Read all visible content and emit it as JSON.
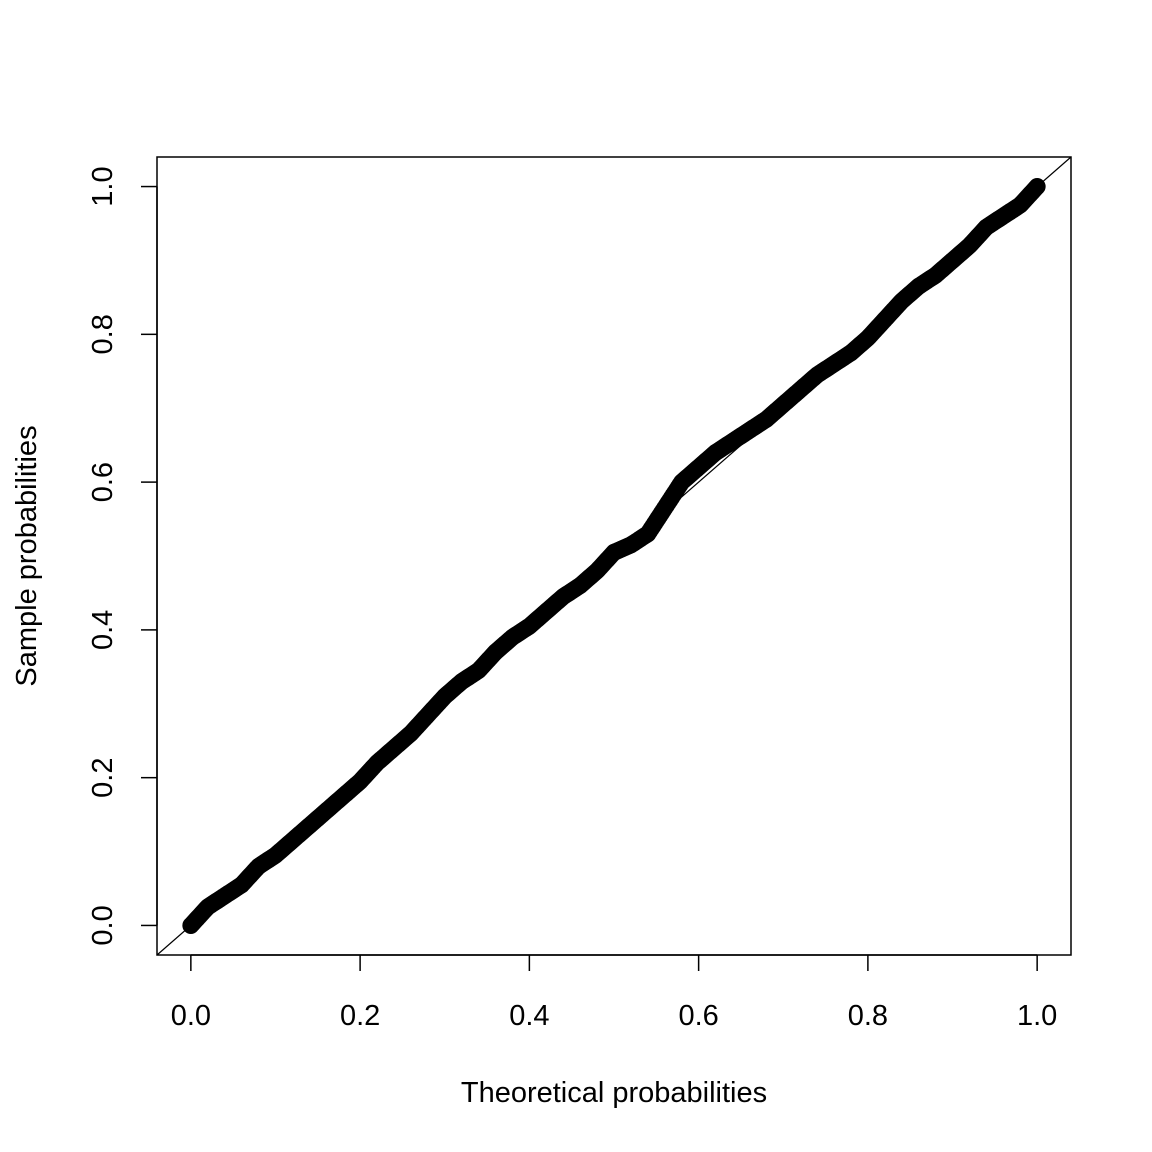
{
  "chart_data": {
    "type": "scatter",
    "title": "",
    "xlabel": "Theoretical probabilities",
    "ylabel": "Sample probabilities",
    "xlim": [
      -0.04,
      1.04
    ],
    "ylim": [
      -0.04,
      1.04
    ],
    "x_ticks": [
      "0.0",
      "0.2",
      "0.4",
      "0.6",
      "0.8",
      "1.0"
    ],
    "y_ticks": [
      "0.0",
      "0.2",
      "0.4",
      "0.6",
      "0.8",
      "1.0"
    ],
    "reference_line": {
      "intercept": 0,
      "slope": 1
    },
    "grid": false,
    "series": [
      {
        "x": [
          0,
          0.02,
          0.04,
          0.06,
          0.08,
          0.1,
          0.12,
          0.14,
          0.16,
          0.18,
          0.2,
          0.22,
          0.24,
          0.26,
          0.28,
          0.3,
          0.32,
          0.34,
          0.36,
          0.38,
          0.4,
          0.42,
          0.44,
          0.46,
          0.48,
          0.5,
          0.52,
          0.54,
          0.56,
          0.58,
          0.6,
          0.62,
          0.64,
          0.66,
          0.68,
          0.7,
          0.72,
          0.74,
          0.76,
          0.78,
          0.8,
          0.82,
          0.84,
          0.86,
          0.88,
          0.9,
          0.92,
          0.94,
          0.96,
          0.98,
          1.0
        ],
        "y": [
          0.0,
          0.025,
          0.04,
          0.055,
          0.08,
          0.095,
          0.115,
          0.135,
          0.155,
          0.175,
          0.195,
          0.22,
          0.24,
          0.26,
          0.285,
          0.31,
          0.33,
          0.345,
          0.37,
          0.39,
          0.405,
          0.425,
          0.445,
          0.46,
          0.48,
          0.505,
          0.515,
          0.53,
          0.565,
          0.6,
          0.62,
          0.64,
          0.655,
          0.67,
          0.685,
          0.705,
          0.725,
          0.745,
          0.76,
          0.775,
          0.795,
          0.82,
          0.845,
          0.865,
          0.88,
          0.9,
          0.92,
          0.945,
          0.96,
          0.975,
          1.0
        ]
      }
    ]
  }
}
